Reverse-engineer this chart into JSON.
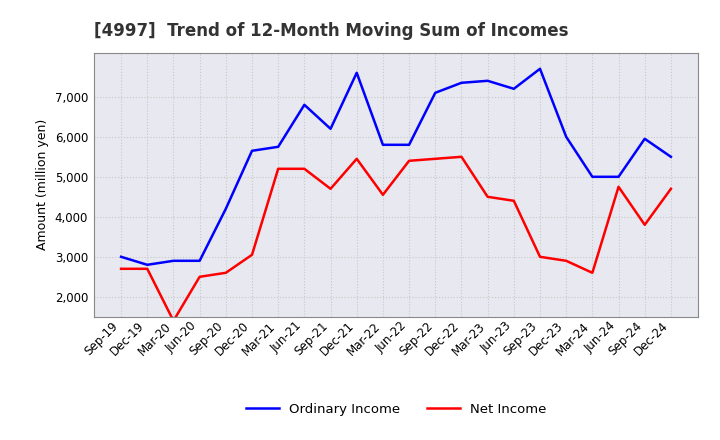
{
  "title": "[4997]  Trend of 12-Month Moving Sum of Incomes",
  "ylabel": "Amount (million yen)",
  "x_labels": [
    "Sep-19",
    "Dec-19",
    "Mar-20",
    "Jun-20",
    "Sep-20",
    "Dec-20",
    "Mar-21",
    "Jun-21",
    "Sep-21",
    "Dec-21",
    "Mar-22",
    "Jun-22",
    "Sep-22",
    "Dec-22",
    "Mar-23",
    "Jun-23",
    "Sep-23",
    "Dec-23",
    "Mar-24",
    "Jun-24",
    "Sep-24",
    "Dec-24"
  ],
  "ordinary_income": [
    3000,
    2800,
    2900,
    2900,
    4200,
    5650,
    5750,
    6800,
    6200,
    7600,
    5800,
    5800,
    7100,
    7350,
    7400,
    7200,
    7700,
    6000,
    5000,
    5000,
    5950,
    5500
  ],
  "net_income": [
    2700,
    2700,
    1400,
    2500,
    2600,
    3050,
    5200,
    5200,
    4700,
    5450,
    4550,
    5400,
    5450,
    5500,
    4500,
    4400,
    3000,
    2900,
    2600,
    4750,
    3800,
    4700
  ],
  "ordinary_income_color": "#0000ff",
  "net_income_color": "#ff0000",
  "ylim": [
    1500,
    8100
  ],
  "yticks": [
    2000,
    3000,
    4000,
    5000,
    6000,
    7000
  ],
  "background_color": "#ffffff",
  "grid_color": "#c8c8c8",
  "title_fontsize": 12,
  "label_fontsize": 9,
  "tick_fontsize": 8.5,
  "legend_fontsize": 9.5
}
